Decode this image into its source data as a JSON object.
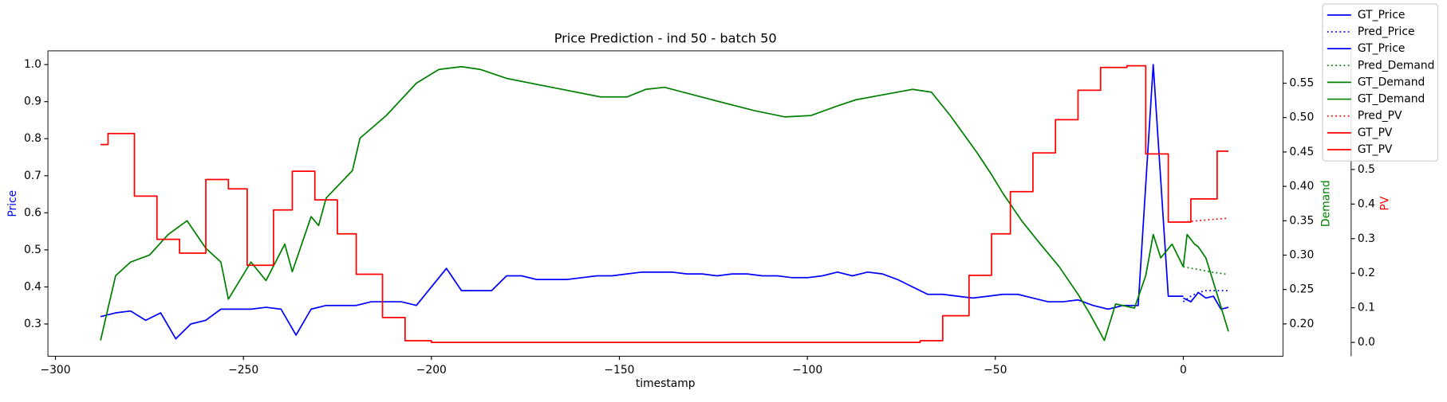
{
  "chart_data": {
    "type": "line",
    "title": "Price Prediction - ind 50 - batch 50",
    "xlabel": "timestamp",
    "ylabel": "Price",
    "y2label": "Demand",
    "y3label": "PV",
    "xlim": [
      -302,
      26.5
    ],
    "xticks": [
      {
        "value": -300,
        "label": "−300"
      },
      {
        "value": -250,
        "label": "−250"
      },
      {
        "value": -200,
        "label": "−200"
      },
      {
        "value": -150,
        "label": "−150"
      },
      {
        "value": -100,
        "label": "−100"
      },
      {
        "value": -50,
        "label": "−50"
      },
      0
    ],
    "ylim": [
      0.213,
      1.037
    ],
    "yticks": [
      0.3,
      0.4,
      0.5,
      0.6,
      0.7,
      0.8,
      0.9,
      {
        "value": 1,
        "label": "1.0"
      }
    ],
    "y2lim": [
      0.153,
      0.597
    ],
    "y2ticks": [
      {
        "value": 0.2,
        "label": "0.20"
      },
      0.25,
      {
        "value": 0.3,
        "label": "0.30"
      },
      0.35,
      {
        "value": 0.4,
        "label": "0.40"
      },
      0.45,
      {
        "value": 0.5,
        "label": "0.50"
      },
      0.55
    ],
    "y3lim": [
      -0.04,
      0.843
    ],
    "y3ticks": [
      {
        "value": 0,
        "label": "0.0"
      },
      0.1,
      0.2,
      0.3,
      0.4,
      0.5
    ],
    "series": [
      {
        "name": "GT_Price",
        "color": "#0000ff",
        "axis": "y",
        "linestyle": "solid",
        "x": [
          -288,
          -284,
          -280,
          -276,
          -272,
          -268,
          -264,
          -260,
          -256,
          -252,
          -248,
          -244,
          -240,
          -236,
          -232,
          -228,
          -224,
          -220,
          -216,
          -212,
          -208,
          -204,
          -200,
          -196,
          -192,
          -188,
          -184,
          -180,
          -176,
          -172,
          -168,
          -164,
          -160,
          -156,
          -152,
          -148,
          -144,
          -140,
          -136,
          -132,
          -128,
          -124,
          -120,
          -116,
          -112,
          -108,
          -104,
          -100,
          -96,
          -92,
          -88,
          -84,
          -80,
          -76,
          -72,
          -68,
          -64,
          -60,
          -56,
          -52,
          -48,
          -44,
          -40,
          -36,
          -32,
          -28,
          -24,
          -20,
          -16,
          -12,
          -8,
          -4,
          0
        ],
        "values": [
          0.32,
          0.33,
          0.335,
          0.31,
          0.33,
          0.26,
          0.3,
          0.31,
          0.34,
          0.34,
          0.34,
          0.345,
          0.34,
          0.27,
          0.34,
          0.35,
          0.35,
          0.35,
          0.36,
          0.36,
          0.36,
          0.35,
          0.4,
          0.45,
          0.39,
          0.39,
          0.39,
          0.43,
          0.43,
          0.42,
          0.42,
          0.42,
          0.425,
          0.43,
          0.43,
          0.435,
          0.44,
          0.44,
          0.44,
          0.435,
          0.435,
          0.43,
          0.435,
          0.435,
          0.43,
          0.43,
          0.425,
          0.425,
          0.43,
          0.44,
          0.43,
          0.44,
          0.435,
          0.42,
          0.4,
          0.38,
          0.38,
          0.375,
          0.37,
          0.375,
          0.38,
          0.38,
          0.37,
          0.36,
          0.36,
          0.365,
          0.35,
          0.34,
          0.35,
          0.35,
          1.0,
          0.375,
          0.375
        ]
      },
      {
        "name": "Pred_Price",
        "color": "#0000ff",
        "axis": "y",
        "linestyle": "dotted",
        "x": [
          0,
          2,
          4,
          6,
          8,
          10,
          12
        ],
        "values": [
          0.36,
          0.375,
          0.385,
          0.39,
          0.39,
          0.39,
          0.39
        ]
      },
      {
        "name": "GT_Price",
        "color": "#0000ff",
        "axis": "y",
        "linestyle": "solid",
        "x": [
          0,
          2,
          4,
          6,
          8,
          10,
          12
        ],
        "values": [
          0.37,
          0.36,
          0.385,
          0.37,
          0.375,
          0.34,
          0.345
        ]
      },
      {
        "name": "Pred_Demand",
        "color": "#008000",
        "axis": "y2",
        "linestyle": "dotted",
        "x": [
          0,
          4,
          8,
          12
        ],
        "values": [
          0.283,
          0.279,
          0.275,
          0.272
        ]
      },
      {
        "name": "GT_Demand",
        "color": "#008000",
        "axis": "y2",
        "linestyle": "solid",
        "x": [
          -288,
          -284,
          -280,
          -275,
          -270,
          -265,
          -260,
          -256,
          -254,
          -248,
          -244,
          -239,
          -237,
          -232,
          -230,
          -228,
          -221,
          -219,
          -212,
          -204,
          -198,
          -192,
          -187,
          -180,
          -168,
          -155,
          -148,
          -143,
          -138,
          -131,
          -124,
          -114,
          -106,
          -99,
          -92,
          -87,
          -79,
          -72,
          -67,
          -62,
          -55,
          -51,
          -48,
          -43,
          -38,
          -33,
          -28,
          -25,
          -23,
          -21,
          -18,
          -13,
          -10,
          -8,
          -6,
          -3,
          0
        ],
        "values": [
          0.176,
          0.27,
          0.29,
          0.3,
          0.33,
          0.35,
          0.31,
          0.29,
          0.236,
          0.29,
          0.263,
          0.316,
          0.276,
          0.356,
          0.343,
          0.383,
          0.423,
          0.47,
          0.503,
          0.55,
          0.57,
          0.574,
          0.57,
          0.557,
          0.544,
          0.53,
          0.53,
          0.541,
          0.544,
          0.534,
          0.524,
          0.51,
          0.501,
          0.503,
          0.517,
          0.526,
          0.534,
          0.541,
          0.537,
          0.503,
          0.45,
          0.417,
          0.39,
          0.35,
          0.316,
          0.283,
          0.243,
          0.216,
          0.196,
          0.176,
          0.229,
          0.223,
          0.27,
          0.33,
          0.296,
          0.316,
          0.283
        ]
      },
      {
        "name": "GT_Demand",
        "color": "#008000",
        "axis": "y2",
        "linestyle": "solid",
        "x": [
          0,
          1,
          3,
          4,
          6,
          9,
          12
        ],
        "values": [
          0.283,
          0.33,
          0.316,
          0.312,
          0.296,
          0.243,
          0.189
        ]
      },
      {
        "name": "Pred_PV",
        "color": "#ff0000",
        "axis": "y3",
        "linestyle": "dotted",
        "x": [
          0,
          4,
          8,
          12
        ],
        "values": [
          0.348,
          0.352,
          0.356,
          0.359
        ]
      },
      {
        "name": "GT_PV",
        "color": "#ff0000",
        "axis": "y3",
        "linestyle": "solid",
        "x": [
          -288,
          -286,
          -286,
          -279,
          -279,
          -273,
          -273,
          -267,
          -267,
          -260,
          -260,
          -254,
          -254,
          -249,
          -249,
          -242,
          -242,
          -237,
          -237,
          -231,
          -231,
          -225,
          -225,
          -220,
          -220,
          -213,
          -213,
          -207,
          -207,
          -200,
          -200,
          -70,
          -70,
          -64,
          -64,
          -57,
          -57,
          -51,
          -51,
          -46,
          -46,
          -40,
          -40,
          -34,
          -34,
          -28,
          -28,
          -22,
          -22,
          -15,
          -15,
          -10,
          -10,
          -4,
          -4,
          0
        ],
        "values": [
          0.572,
          0.572,
          0.604,
          0.604,
          0.423,
          0.423,
          0.298,
          0.298,
          0.258,
          0.258,
          0.471,
          0.471,
          0.444,
          0.444,
          0.223,
          0.223,
          0.383,
          0.383,
          0.495,
          0.495,
          0.412,
          0.412,
          0.314,
          0.314,
          0.197,
          0.197,
          0.072,
          0.072,
          0.005,
          0.005,
          0,
          0,
          0.005,
          0.005,
          0.077,
          0.077,
          0.194,
          0.194,
          0.314,
          0.314,
          0.436,
          0.436,
          0.548,
          0.548,
          0.644,
          0.644,
          0.729,
          0.729,
          0.795,
          0.795,
          0.8,
          0.8,
          0.545,
          0.545,
          0.348,
          0.348
        ]
      },
      {
        "name": "GT_PV",
        "color": "#ff0000",
        "axis": "y3",
        "linestyle": "solid",
        "x": [
          0,
          2,
          2,
          9,
          9,
          12
        ],
        "values": [
          0.348,
          0.348,
          0.415,
          0.415,
          0.553,
          0.553
        ]
      }
    ]
  }
}
